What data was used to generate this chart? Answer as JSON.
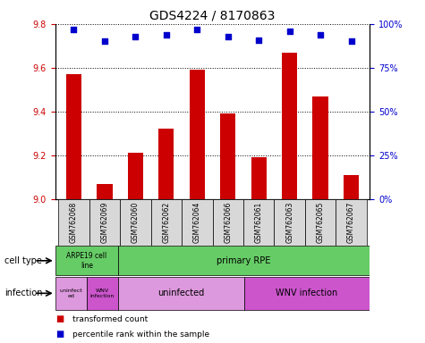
{
  "title": "GDS4224 / 8170863",
  "samples": [
    "GSM762068",
    "GSM762069",
    "GSM762060",
    "GSM762062",
    "GSM762064",
    "GSM762066",
    "GSM762061",
    "GSM762063",
    "GSM762065",
    "GSM762067"
  ],
  "transformed_count": [
    9.57,
    9.07,
    9.21,
    9.32,
    9.59,
    9.39,
    9.19,
    9.67,
    9.47,
    9.11
  ],
  "percentile_rank": [
    97,
    90,
    93,
    94,
    97,
    93,
    91,
    96,
    94,
    90
  ],
  "ylim": [
    9.0,
    9.8
  ],
  "yticks": [
    9.0,
    9.2,
    9.4,
    9.6,
    9.8
  ],
  "y2lim": [
    0,
    100
  ],
  "y2ticks": [
    0,
    25,
    50,
    75,
    100
  ],
  "y2ticklabels": [
    "0%",
    "25%",
    "50%",
    "75%",
    "100%"
  ],
  "bar_color": "#cc0000",
  "dot_color": "#0000cc",
  "bg_color": "#ffffff",
  "tick_label_color_left": "#cc0000",
  "tick_label_color_right": "#0000cc"
}
